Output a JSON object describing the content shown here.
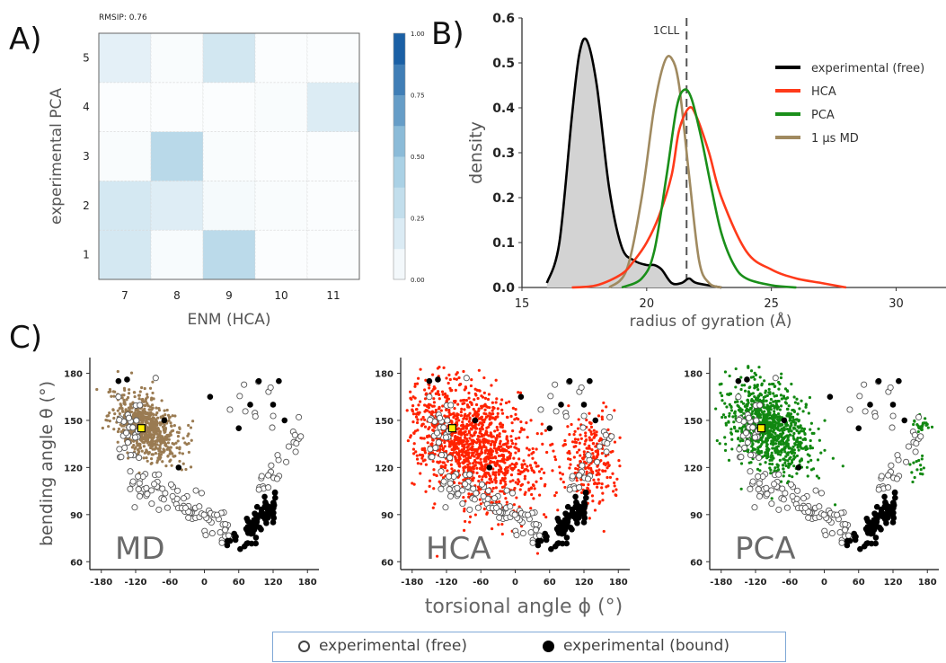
{
  "panels": {
    "a": "A)",
    "b": "B)",
    "c": "C)"
  },
  "chart_data": [
    {
      "id": "A",
      "type": "heatmap",
      "title": "RMSIP: 0.76",
      "xlabel": "ENM (HCA)",
      "ylabel": "experimental PCA",
      "x_categories": [
        "7",
        "8",
        "9",
        "10",
        "11"
      ],
      "y_categories": [
        "1",
        "2",
        "3",
        "4",
        "5"
      ],
      "values": [
        [
          0.22,
          0.04,
          0.35,
          0.02,
          0.02
        ],
        [
          0.22,
          0.17,
          0.05,
          0.03,
          0.02
        ],
        [
          0.03,
          0.36,
          0.03,
          0.02,
          0.02
        ],
        [
          0.02,
          0.02,
          0.02,
          0.03,
          0.18
        ],
        [
          0.14,
          0.03,
          0.23,
          0.02,
          0.02
        ]
      ],
      "colorbar": {
        "min": 0.0,
        "max": 1.0,
        "ticks": [
          "0.00",
          "0.25",
          "0.50",
          "0.75",
          "1.00"
        ]
      },
      "colors": {
        "low": "#ffffff",
        "high": "#08519c"
      }
    },
    {
      "id": "B",
      "type": "line",
      "xlabel": "radius of gyration (Å)",
      "ylabel": "density",
      "xlim": [
        15,
        32
      ],
      "ylim": [
        0,
        0.6
      ],
      "x_ticks": [
        "15",
        "20",
        "25",
        "30"
      ],
      "y_ticks": [
        "0.0",
        "0.1",
        "0.2",
        "0.3",
        "0.4",
        "0.5",
        "0.6"
      ],
      "reference_line": {
        "x": 21.6,
        "label": "1CLL"
      },
      "series": [
        {
          "name": "experimental (free)",
          "color": "#000000",
          "filled": true,
          "x": [
            16,
            16.5,
            17,
            17.3,
            17.6,
            18,
            18.5,
            19,
            19.5,
            20,
            20.3,
            20.6,
            21,
            21.4,
            21.7,
            22,
            23
          ],
          "y": [
            0.01,
            0.1,
            0.38,
            0.52,
            0.55,
            0.45,
            0.22,
            0.09,
            0.06,
            0.05,
            0.05,
            0.04,
            0.01,
            0.01,
            0.02,
            0.01,
            0.0
          ]
        },
        {
          "name": "HCA",
          "color": "#ff3a1a",
          "x": [
            17,
            18,
            19,
            19.5,
            20,
            20.5,
            21,
            21.3,
            21.7,
            22,
            22.5,
            23,
            24,
            25,
            26,
            27,
            28
          ],
          "y": [
            0.0,
            0.005,
            0.03,
            0.06,
            0.1,
            0.16,
            0.25,
            0.35,
            0.4,
            0.38,
            0.3,
            0.2,
            0.08,
            0.04,
            0.02,
            0.01,
            0.0
          ]
        },
        {
          "name": "PCA",
          "color": "#1a8f1a",
          "x": [
            19,
            19.8,
            20.3,
            20.8,
            21.2,
            21.5,
            21.8,
            22.2,
            22.6,
            23,
            23.5,
            24,
            25,
            26
          ],
          "y": [
            0.0,
            0.02,
            0.08,
            0.25,
            0.4,
            0.44,
            0.42,
            0.33,
            0.22,
            0.12,
            0.05,
            0.02,
            0.005,
            0.0
          ]
        },
        {
          "name": "1 µs MD",
          "color": "#a08a60",
          "x": [
            18.5,
            19.2,
            19.8,
            20.3,
            20.7,
            21,
            21.3,
            21.7,
            22.1,
            22.5,
            23
          ],
          "y": [
            0.0,
            0.04,
            0.2,
            0.4,
            0.5,
            0.51,
            0.45,
            0.25,
            0.06,
            0.01,
            0.0
          ]
        }
      ]
    },
    {
      "id": "C",
      "type": "scatter",
      "shared_xlabel": "torsional angle ϕ (°)",
      "ylabel": "bending angle θ (°)",
      "xlim": [
        -200,
        200
      ],
      "ylim": [
        55,
        190
      ],
      "x_ticks": [
        "-180",
        "-120",
        "-60",
        "0",
        "60",
        "120",
        "180"
      ],
      "y_ticks": [
        "60",
        "90",
        "120",
        "150",
        "180"
      ],
      "subplots": [
        {
          "label": "MD",
          "cloud_color": "#9a7b52"
        },
        {
          "label": "HCA",
          "cloud_color": "#ff2200"
        },
        {
          "label": "PCA",
          "cloud_color": "#118811"
        }
      ],
      "marker_colors": {
        "free_fill": "#ffffff",
        "free_edge": "#555555",
        "bound": "#000000",
        "reference": "#ffee00"
      }
    }
  ],
  "legend": {
    "free_label": "experimental (free)",
    "bound_label": "experimental (bound)"
  }
}
